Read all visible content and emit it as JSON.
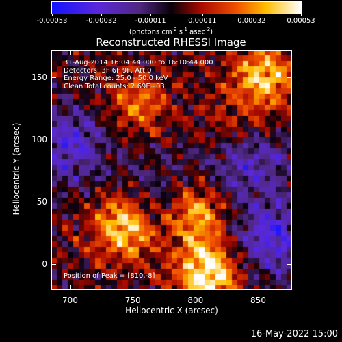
{
  "chart_data": {
    "type": "heatmap",
    "title": "Reconstructed RHESSI Image",
    "xlabel": "Heliocentric X (arcsec)",
    "ylabel": "Heliocentric Y (arcsec)",
    "xlim": [
      685,
      877
    ],
    "ylim": [
      -21,
      172
    ],
    "x_ticks": [
      700,
      750,
      800,
      850
    ],
    "y_ticks": [
      0,
      50,
      100,
      150
    ],
    "colorbar": {
      "ticks": [
        "-0.00053",
        "-0.00032",
        "-0.00011",
        "0.00011",
        "0.00032",
        "0.00053"
      ],
      "range": [
        -0.00053,
        0.00053
      ],
      "units_text": "(photons cm",
      "units_sup1": "-2",
      "units_mid": " s",
      "units_sup2": "-1",
      "units_mid2": " asec",
      "units_sup3": "-2",
      "units_end": ")"
    },
    "annotations": [
      "31-Aug-2014 16:04:44.000 to 16:10:44.000",
      "Detectors: 3F 6F 9F, Att 0",
      "Energy Range: 25.0 - 50.0 keV",
      "Clean     Total counts: 2.69E+03"
    ],
    "peak_label": "Position of Peak = [810,-8]",
    "hot_spots": [
      {
        "x": 745,
        "y": 30,
        "value": 0.0005
      },
      {
        "x": 810,
        "y": -8,
        "value": 0.00053
      },
      {
        "x": 800,
        "y": 40,
        "value": 0.0004
      },
      {
        "x": 855,
        "y": 150,
        "value": 0.00042
      },
      {
        "x": 755,
        "y": 130,
        "value": 0.00025
      },
      {
        "x": 830,
        "y": 110,
        "value": 0.0002
      }
    ],
    "cold_spots": [
      {
        "x": 700,
        "y": 95,
        "value": -0.0003
      },
      {
        "x": 860,
        "y": 20,
        "value": -0.00035
      },
      {
        "x": 840,
        "y": 85,
        "value": -0.0003
      },
      {
        "x": 770,
        "y": 50,
        "value": -0.0002
      }
    ]
  },
  "footer": {
    "timestamp": "16-May-2022 15:00"
  }
}
